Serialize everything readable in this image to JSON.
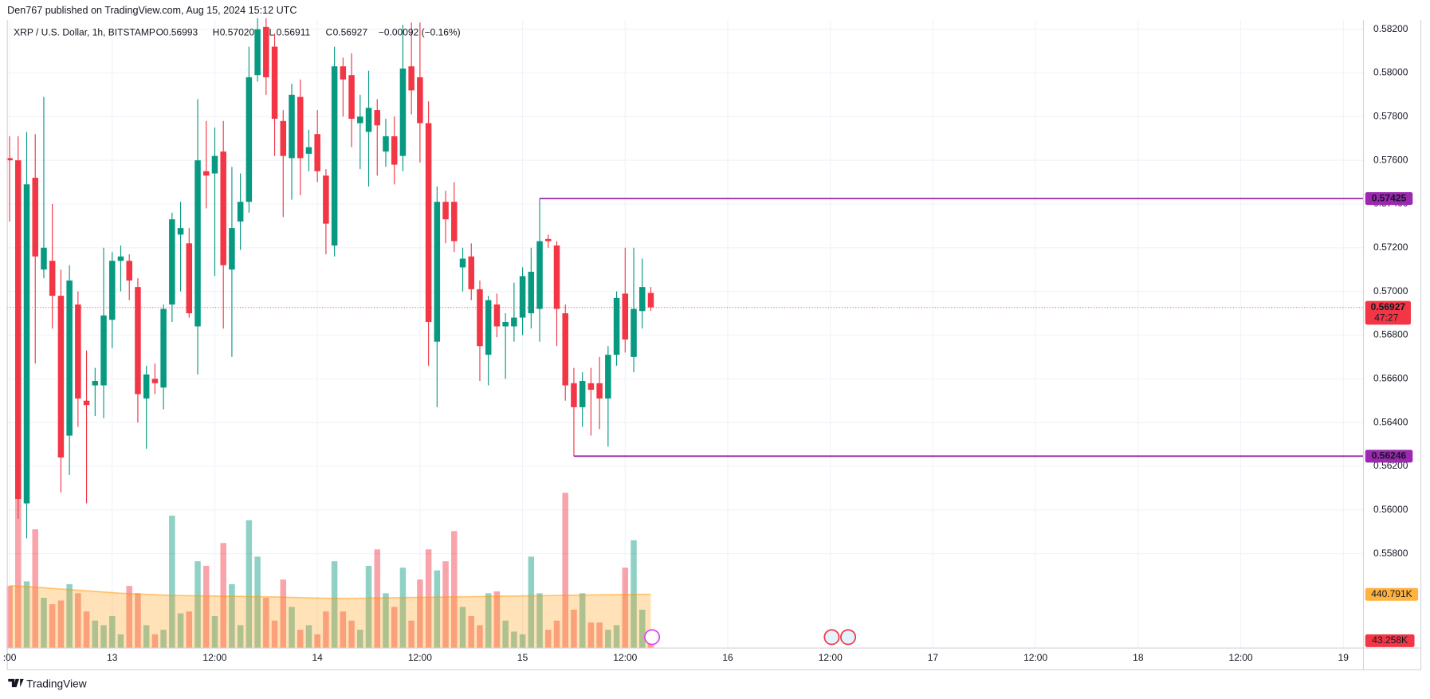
{
  "top_line": "Den767 published on TradingView.com, Aug 15, 2024 15:12 UTC",
  "brand": "TradingView",
  "chart_data": {
    "type": "candlestick",
    "legend": {
      "symbol": "XRP / U.S. Dollar, 1h, BITSTAMP",
      "items": [
        {
          "key": "O",
          "text": "0.56993"
        },
        {
          "key": "H",
          "text": "0.57020"
        },
        {
          "key": "L",
          "text": "0.56911"
        },
        {
          "key": "C",
          "text": "0.56927"
        }
      ],
      "change": "−0.00092 (−0.16%)"
    },
    "up_color": "#089981",
    "down_color": "#f23645",
    "level_color": "#9c27b0",
    "ma_color": "#ff9800",
    "grid": true,
    "x": [
      12,
      13,
      14,
      15,
      16,
      17,
      18,
      19,
      20,
      21,
      22,
      23,
      24,
      25,
      26,
      27,
      28,
      29,
      30,
      31,
      32,
      33,
      34,
      35,
      36,
      37,
      38,
      39,
      40,
      41,
      42,
      43,
      44,
      45,
      46,
      47,
      48,
      49,
      50,
      51,
      52,
      53,
      54,
      55,
      56,
      57,
      58,
      59,
      60,
      61,
      62,
      63,
      64,
      65,
      66,
      67,
      68,
      69,
      70,
      71,
      72,
      73,
      74,
      75,
      76,
      77,
      78,
      79,
      80,
      81,
      82,
      83,
      84,
      85,
      86,
      87
    ],
    "open": [
      0.5761,
      0.576,
      0.5603,
      0.5752,
      0.571,
      0.5714,
      0.5698,
      0.5634,
      0.5694,
      0.565,
      0.5657,
      0.5657,
      0.5687,
      0.5714,
      0.5714,
      0.5702,
      0.5651,
      0.566,
      0.5656,
      0.5694,
      0.5726,
      0.5722,
      0.5684,
      0.5755,
      0.5754,
      0.5764,
      0.571,
      0.5732,
      0.5741,
      0.5799,
      0.5821,
      0.5812,
      0.5778,
      0.5761,
      0.5789,
      0.5763,
      0.5772,
      0.5753,
      0.5721,
      0.5803,
      0.5799,
      0.5777,
      0.5773,
      0.5783,
      0.5764,
      0.5771,
      0.5762,
      0.5803,
      0.5798,
      0.5777,
      0.5677,
      0.5741,
      0.5741,
      0.5711,
      0.5716,
      0.5701,
      0.5671,
      0.5694,
      0.5684,
      0.5684,
      0.5688,
      0.569,
      0.5692,
      0.5724,
      0.5721,
      0.569,
      0.5658,
      0.5647,
      0.5658,
      0.5658,
      0.5651,
      0.5671,
      0.5699,
      0.567,
      0.5691,
      0.56993
    ],
    "high": [
      0.5771,
      0.5771,
      0.5773,
      0.5772,
      0.5789,
      0.574,
      0.571,
      0.5712,
      0.57,
      0.5673,
      0.5665,
      0.572,
      0.5718,
      0.5721,
      0.5717,
      0.5706,
      0.5666,
      0.5667,
      0.5694,
      0.5736,
      0.5741,
      0.5729,
      0.5788,
      0.5778,
      0.5775,
      0.5778,
      0.5757,
      0.5754,
      0.5812,
      0.5825,
      0.5825,
      0.5818,
      0.5783,
      0.5795,
      0.5797,
      0.5774,
      0.5783,
      0.5756,
      0.5812,
      0.5807,
      0.5809,
      0.579,
      0.5801,
      0.5788,
      0.5779,
      0.578,
      0.5822,
      0.5823,
      0.5823,
      0.5787,
      0.5748,
      0.5746,
      0.575,
      0.572,
      0.5722,
      0.5705,
      0.5698,
      0.5699,
      0.569,
      0.5704,
      0.5711,
      0.572,
      0.57425,
      0.5726,
      0.5723,
      0.5694,
      0.5665,
      0.5663,
      0.5665,
      0.567,
      0.5675,
      0.57,
      0.572,
      0.572,
      0.5715,
      0.5702
    ],
    "low": [
      0.5732,
      0.5596,
      0.5587,
      0.5667,
      0.5706,
      0.5683,
      0.5608,
      0.5616,
      0.5638,
      0.5603,
      0.5643,
      0.5642,
      0.5674,
      0.57,
      0.5696,
      0.564,
      0.5628,
      0.5653,
      0.5646,
      0.5686,
      0.57,
      0.5688,
      0.5662,
      0.5738,
      0.5707,
      0.5683,
      0.567,
      0.5719,
      0.5736,
      0.5796,
      0.579,
      0.5762,
      0.5734,
      0.5742,
      0.5744,
      0.5755,
      0.575,
      0.5717,
      0.5716,
      0.578,
      0.5766,
      0.5756,
      0.5748,
      0.5753,
      0.5757,
      0.5749,
      0.5755,
      0.5781,
      0.5759,
      0.5666,
      0.5647,
      0.5722,
      0.5718,
      0.57,
      0.5696,
      0.5659,
      0.5657,
      0.5679,
      0.566,
      0.5677,
      0.568,
      0.5683,
      0.5677,
      0.572,
      0.5675,
      0.565,
      0.56246,
      0.5638,
      0.5634,
      0.5637,
      0.5629,
      0.5666,
      0.5672,
      0.5663,
      0.5683,
      0.56911
    ],
    "close": [
      0.576,
      0.5605,
      0.5749,
      0.5716,
      0.572,
      0.5698,
      0.5624,
      0.5705,
      0.5651,
      0.5648,
      0.5659,
      0.5689,
      0.5714,
      0.5716,
      0.5705,
      0.5653,
      0.5662,
      0.5658,
      0.5692,
      0.5733,
      0.5729,
      0.569,
      0.576,
      0.5753,
      0.5762,
      0.5712,
      0.5729,
      0.5741,
      0.5798,
      0.582,
      0.5798,
      0.5779,
      0.5762,
      0.579,
      0.5761,
      0.5766,
      0.5755,
      0.5731,
      0.5803,
      0.5797,
      0.5779,
      0.578,
      0.5784,
      0.5776,
      0.5771,
      0.5758,
      0.5802,
      0.5792,
      0.5777,
      0.5686,
      0.5741,
      0.5733,
      0.5723,
      0.5715,
      0.5701,
      0.5675,
      0.5696,
      0.5684,
      0.5686,
      0.5688,
      0.5707,
      0.5709,
      0.5723,
      0.5723,
      0.5692,
      0.5657,
      0.5647,
      0.5659,
      0.5655,
      0.5651,
      0.5671,
      0.5697,
      0.5678,
      0.5692,
      0.5702,
      0.56927
    ],
    "volume": [
      510000,
      1222500,
      547500,
      975000,
      412500,
      360000,
      390000,
      525000,
      450000,
      300000,
      225000,
      187500,
      262500,
      112500,
      510000,
      450000,
      187500,
      112500,
      150000,
      1087500,
      285000,
      300000,
      712500,
      675000,
      262500,
      862500,
      525000,
      187500,
      1050000,
      750000,
      412500,
      225000,
      562500,
      337500,
      150000,
      187500,
      112500,
      300000,
      712500,
      300000,
      225000,
      150000,
      675000,
      810000,
      450000,
      337500,
      660000,
      225000,
      562500,
      810000,
      637500,
      712500,
      960000,
      337500,
      262500,
      187500,
      450000,
      465000,
      225000,
      135000,
      112500,
      750000,
      450000,
      150000,
      225000,
      1275000,
      315000,
      450000,
      210000,
      210000,
      150000,
      187500,
      660000,
      885000,
      315000,
      43258
    ],
    "volume_ma": [
      510000,
      510000,
      505000,
      500000,
      495000,
      490000,
      485000,
      480000,
      475000,
      470000,
      465000,
      460000,
      455000,
      450000,
      447000,
      444000,
      441000,
      438000,
      435000,
      433000,
      431000,
      430000,
      429000,
      428000,
      427000,
      426000,
      425000,
      424000,
      423000,
      422000,
      421000,
      420000,
      418000,
      416000,
      414000,
      412000,
      410000,
      409000,
      408000,
      408000,
      408000,
      409000,
      410000,
      411000,
      412000,
      413000,
      414000,
      415000,
      416000,
      417000,
      418000,
      419000,
      420000,
      421000,
      422000,
      423000,
      424000,
      425000,
      426000,
      427000,
      428000,
      429000,
      430000,
      431000,
      432000,
      433000,
      434000,
      435000,
      436000,
      437000,
      438000,
      439000,
      440000,
      440500,
      440700,
      440791
    ],
    "volume_label": {
      "value": 43258,
      "label": "43.258K"
    },
    "volume_ma_label": {
      "value": 440791,
      "label": "440.791K"
    },
    "countdown": "47:27",
    "levels": [
      {
        "value": 0.57425,
        "x": 74
      },
      {
        "value": 0.56246,
        "x": 78
      }
    ],
    "xlim": [
      11.73,
      170.35
    ],
    "ylim": [
      0.55368,
      0.58242
    ],
    "volume_lim": [
      0,
      1500000
    ],
    "xticks": [
      {
        "value": 12,
        "label": ":00"
      },
      {
        "value": 24,
        "label": "13"
      },
      {
        "value": 36,
        "label": "12:00"
      },
      {
        "value": 48,
        "label": "14"
      },
      {
        "value": 60,
        "label": "12:00"
      },
      {
        "value": 72,
        "label": "15"
      },
      {
        "value": 84,
        "label": "12:00"
      },
      {
        "value": 96,
        "label": "16"
      },
      {
        "value": 108,
        "label": "12:00"
      },
      {
        "value": 120,
        "label": "17"
      },
      {
        "value": 132,
        "label": "12:00"
      },
      {
        "value": 144,
        "label": "18"
      },
      {
        "value": 156,
        "label": "12:00"
      },
      {
        "value": 168,
        "label": "19"
      }
    ],
    "yticks": [
      {
        "value": 0.582,
        "label": "0.58200"
      },
      {
        "value": 0.58,
        "label": "0.58000"
      },
      {
        "value": 0.578,
        "label": "0.57800"
      },
      {
        "value": 0.576,
        "label": "0.57600"
      },
      {
        "value": 0.574,
        "label": "0.57400"
      },
      {
        "value": 0.572,
        "label": "0.57200"
      },
      {
        "value": 0.57,
        "label": "0.57000"
      },
      {
        "value": 0.568,
        "label": "0.56800"
      },
      {
        "value": 0.566,
        "label": "0.56600"
      },
      {
        "value": 0.564,
        "label": "0.56400"
      },
      {
        "value": 0.562,
        "label": "0.56200"
      },
      {
        "value": 0.56,
        "label": "0.56000"
      },
      {
        "value": 0.558,
        "label": "0.55800"
      }
    ]
  }
}
